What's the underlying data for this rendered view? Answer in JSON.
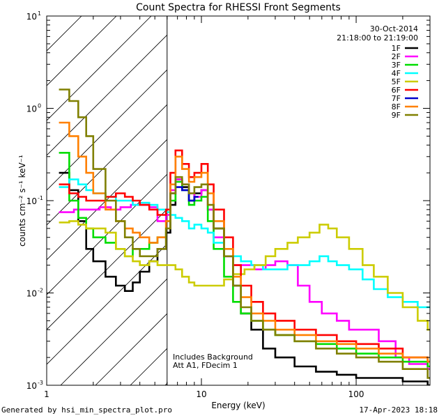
{
  "chart_data": {
    "type": "line",
    "title": "Count Spectra for RHESSI Front Segments",
    "xlabel": "Energy (keV)",
    "ylabel": "counts cm⁻² s⁻¹ keV⁻¹",
    "xscale": "log",
    "yscale": "log",
    "xlim": [
      1,
      300
    ],
    "ylim": [
      0.001,
      10
    ],
    "x_tick_labels": [
      {
        "value": 1,
        "label": "1"
      },
      {
        "value": 10,
        "label": "10"
      },
      {
        "value": 100,
        "label": "100"
      }
    ],
    "y_tick_labels": [
      {
        "value": 10,
        "label": "10",
        "exp": "1"
      },
      {
        "value": 1,
        "label": "10",
        "exp": "0"
      },
      {
        "value": 0.1,
        "label": "10",
        "exp": "-1"
      },
      {
        "value": 0.01,
        "label": "10",
        "exp": "-2"
      },
      {
        "value": 0.001,
        "label": "10",
        "exp": "-3"
      }
    ],
    "hatched_region_keV": [
      1,
      6
    ],
    "legend_position": "top-right",
    "date": "30-Oct-2014",
    "time_range": "21:18:00 to 21:19:00",
    "annotations": [
      "Includes Background",
      "Att A1, FDecim 1"
    ],
    "series": [
      {
        "name": "1F",
        "color": "#000000",
        "points": [
          [
            1.2,
            0.2
          ],
          [
            1.4,
            0.13
          ],
          [
            1.6,
            0.06
          ],
          [
            1.8,
            0.03
          ],
          [
            2.0,
            0.022
          ],
          [
            2.4,
            0.015
          ],
          [
            2.8,
            0.012
          ],
          [
            3.2,
            0.0105
          ],
          [
            3.6,
            0.013
          ],
          [
            4.0,
            0.017
          ],
          [
            4.6,
            0.022
          ],
          [
            5.2,
            0.03
          ],
          [
            5.9,
            0.045
          ],
          [
            6.3,
            0.09
          ],
          [
            6.8,
            0.17
          ],
          [
            7.5,
            0.14
          ],
          [
            8.3,
            0.1
          ],
          [
            9.0,
            0.12
          ],
          [
            10.0,
            0.13
          ],
          [
            11.0,
            0.08
          ],
          [
            12.0,
            0.05
          ],
          [
            14.0,
            0.025
          ],
          [
            16.0,
            0.012
          ],
          [
            18.0,
            0.006
          ],
          [
            21.0,
            0.004
          ],
          [
            25.0,
            0.0025
          ],
          [
            30.0,
            0.002
          ],
          [
            40.0,
            0.0016
          ],
          [
            55.0,
            0.0014
          ],
          [
            75.0,
            0.0013
          ],
          [
            100.0,
            0.0012
          ],
          [
            140.0,
            0.0012
          ],
          [
            200.0,
            0.0011
          ],
          [
            290.0,
            0.001
          ]
        ]
      },
      {
        "name": "2F",
        "color": "#ff00ff",
        "points": [
          [
            1.2,
            0.075
          ],
          [
            1.5,
            0.08
          ],
          [
            1.8,
            0.08
          ],
          [
            2.2,
            0.085
          ],
          [
            2.6,
            0.08
          ],
          [
            3.0,
            0.085
          ],
          [
            3.5,
            0.09
          ],
          [
            4.0,
            0.09
          ],
          [
            4.6,
            0.085
          ],
          [
            5.2,
            0.06
          ],
          [
            5.9,
            0.07
          ],
          [
            6.3,
            0.13
          ],
          [
            6.8,
            0.17
          ],
          [
            7.5,
            0.15
          ],
          [
            8.3,
            0.12
          ],
          [
            9.0,
            0.11
          ],
          [
            10.0,
            0.13
          ],
          [
            11.0,
            0.08
          ],
          [
            12.0,
            0.04
          ],
          [
            14.0,
            0.025
          ],
          [
            16.0,
            0.02
          ],
          [
            19.0,
            0.02
          ],
          [
            22.0,
            0.018
          ],
          [
            26.0,
            0.02
          ],
          [
            30.0,
            0.022
          ],
          [
            36.0,
            0.02
          ],
          [
            42.0,
            0.012
          ],
          [
            50.0,
            0.008
          ],
          [
            60.0,
            0.006
          ],
          [
            75.0,
            0.005
          ],
          [
            90.0,
            0.004
          ],
          [
            110.0,
            0.004
          ],
          [
            140.0,
            0.003
          ],
          [
            180.0,
            0.002
          ],
          [
            220.0,
            0.0017
          ],
          [
            290.0,
            0.0015
          ]
        ]
      },
      {
        "name": "3F",
        "color": "#00dd00",
        "points": [
          [
            1.2,
            0.33
          ],
          [
            1.4,
            0.1
          ],
          [
            1.6,
            0.065
          ],
          [
            1.8,
            0.05
          ],
          [
            2.0,
            0.04
          ],
          [
            2.4,
            0.035
          ],
          [
            2.8,
            0.03
          ],
          [
            3.2,
            0.025
          ],
          [
            3.6,
            0.03
          ],
          [
            4.0,
            0.03
          ],
          [
            4.6,
            0.035
          ],
          [
            5.2,
            0.04
          ],
          [
            5.9,
            0.06
          ],
          [
            6.3,
            0.1
          ],
          [
            6.8,
            0.16
          ],
          [
            7.5,
            0.13
          ],
          [
            8.3,
            0.09
          ],
          [
            9.0,
            0.1
          ],
          [
            10.0,
            0.11
          ],
          [
            11.0,
            0.06
          ],
          [
            12.0,
            0.03
          ],
          [
            14.0,
            0.015
          ],
          [
            16.0,
            0.008
          ],
          [
            18.0,
            0.006
          ],
          [
            21.0,
            0.005
          ],
          [
            25.0,
            0.004
          ],
          [
            30.0,
            0.0035
          ],
          [
            40.0,
            0.003
          ],
          [
            55.0,
            0.0028
          ],
          [
            75.0,
            0.0025
          ],
          [
            100.0,
            0.0022
          ],
          [
            140.0,
            0.002
          ],
          [
            200.0,
            0.0018
          ],
          [
            290.0,
            0.0016
          ]
        ]
      },
      {
        "name": "4F",
        "color": "#00ffff",
        "points": [
          [
            1.2,
            0.14
          ],
          [
            1.4,
            0.17
          ],
          [
            1.6,
            0.15
          ],
          [
            1.8,
            0.13
          ],
          [
            2.0,
            0.12
          ],
          [
            2.4,
            0.11
          ],
          [
            2.8,
            0.1
          ],
          [
            3.2,
            0.1
          ],
          [
            3.6,
            0.09
          ],
          [
            4.0,
            0.095
          ],
          [
            4.6,
            0.09
          ],
          [
            5.2,
            0.08
          ],
          [
            5.9,
            0.075
          ],
          [
            6.3,
            0.07
          ],
          [
            6.8,
            0.065
          ],
          [
            7.5,
            0.06
          ],
          [
            8.3,
            0.05
          ],
          [
            9.0,
            0.055
          ],
          [
            10.0,
            0.05
          ],
          [
            11.0,
            0.045
          ],
          [
            12.0,
            0.035
          ],
          [
            14.0,
            0.03
          ],
          [
            16.0,
            0.025
          ],
          [
            18.0,
            0.022
          ],
          [
            21.0,
            0.02
          ],
          [
            25.0,
            0.018
          ],
          [
            30.0,
            0.018
          ],
          [
            36.0,
            0.02
          ],
          [
            42.0,
            0.02
          ],
          [
            50.0,
            0.022
          ],
          [
            58.0,
            0.025
          ],
          [
            66.0,
            0.022
          ],
          [
            75.0,
            0.02
          ],
          [
            90.0,
            0.018
          ],
          [
            110.0,
            0.014
          ],
          [
            130.0,
            0.011
          ],
          [
            160.0,
            0.009
          ],
          [
            200.0,
            0.008
          ],
          [
            250.0,
            0.007
          ],
          [
            290.0,
            0.007
          ]
        ]
      },
      {
        "name": "5F",
        "color": "#cccc00",
        "points": [
          [
            1.2,
            0.058
          ],
          [
            1.4,
            0.06
          ],
          [
            1.6,
            0.055
          ],
          [
            1.8,
            0.05
          ],
          [
            2.0,
            0.05
          ],
          [
            2.4,
            0.045
          ],
          [
            2.8,
            0.03
          ],
          [
            3.2,
            0.025
          ],
          [
            3.6,
            0.022
          ],
          [
            4.0,
            0.02
          ],
          [
            4.6,
            0.022
          ],
          [
            5.2,
            0.02
          ],
          [
            5.9,
            0.02
          ],
          [
            6.3,
            0.02
          ],
          [
            6.8,
            0.018
          ],
          [
            7.5,
            0.015
          ],
          [
            8.3,
            0.013
          ],
          [
            9.0,
            0.012
          ],
          [
            10.0,
            0.012
          ],
          [
            11.0,
            0.012
          ],
          [
            12.0,
            0.012
          ],
          [
            14.0,
            0.014
          ],
          [
            16.0,
            0.016
          ],
          [
            19.0,
            0.018
          ],
          [
            22.0,
            0.02
          ],
          [
            26.0,
            0.025
          ],
          [
            30.0,
            0.03
          ],
          [
            36.0,
            0.035
          ],
          [
            42.0,
            0.04
          ],
          [
            50.0,
            0.045
          ],
          [
            58.0,
            0.055
          ],
          [
            66.0,
            0.05
          ],
          [
            75.0,
            0.04
          ],
          [
            90.0,
            0.03
          ],
          [
            110.0,
            0.02
          ],
          [
            130.0,
            0.015
          ],
          [
            160.0,
            0.01
          ],
          [
            200.0,
            0.007
          ],
          [
            250.0,
            0.005
          ],
          [
            290.0,
            0.004
          ]
        ]
      },
      {
        "name": "6F",
        "color": "#ff0000",
        "points": [
          [
            1.2,
            0.15
          ],
          [
            1.4,
            0.12
          ],
          [
            1.6,
            0.11
          ],
          [
            1.8,
            0.1
          ],
          [
            2.0,
            0.1
          ],
          [
            2.4,
            0.11
          ],
          [
            2.8,
            0.12
          ],
          [
            3.2,
            0.11
          ],
          [
            3.6,
            0.1
          ],
          [
            4.0,
            0.09
          ],
          [
            4.6,
            0.08
          ],
          [
            5.2,
            0.07
          ],
          [
            5.9,
            0.08
          ],
          [
            6.3,
            0.2
          ],
          [
            6.8,
            0.35
          ],
          [
            7.5,
            0.25
          ],
          [
            8.3,
            0.18
          ],
          [
            9.0,
            0.2
          ],
          [
            10.0,
            0.25
          ],
          [
            11.0,
            0.15
          ],
          [
            12.0,
            0.08
          ],
          [
            14.0,
            0.04
          ],
          [
            16.0,
            0.02
          ],
          [
            18.0,
            0.012
          ],
          [
            21.0,
            0.008
          ],
          [
            25.0,
            0.006
          ],
          [
            30.0,
            0.005
          ],
          [
            40.0,
            0.004
          ],
          [
            55.0,
            0.0035
          ],
          [
            75.0,
            0.003
          ],
          [
            100.0,
            0.0028
          ],
          [
            140.0,
            0.0025
          ],
          [
            200.0,
            0.002
          ],
          [
            290.0,
            0.0018
          ]
        ]
      },
      {
        "name": "7F",
        "color": "#0000cc",
        "points": [
          [
            6.3,
            0.12
          ],
          [
            6.8,
            0.14
          ],
          [
            7.5,
            0.13
          ],
          [
            8.3,
            0.1
          ],
          [
            9.0,
            0.11
          ]
        ]
      },
      {
        "name": "8F",
        "color": "#ff8000",
        "points": [
          [
            1.2,
            0.7
          ],
          [
            1.4,
            0.5
          ],
          [
            1.6,
            0.3
          ],
          [
            1.8,
            0.2
          ],
          [
            2.0,
            0.12
          ],
          [
            2.4,
            0.08
          ],
          [
            2.8,
            0.06
          ],
          [
            3.2,
            0.05
          ],
          [
            3.6,
            0.045
          ],
          [
            4.0,
            0.04
          ],
          [
            4.6,
            0.035
          ],
          [
            5.2,
            0.04
          ],
          [
            5.9,
            0.06
          ],
          [
            6.3,
            0.15
          ],
          [
            6.8,
            0.3
          ],
          [
            7.5,
            0.22
          ],
          [
            8.3,
            0.16
          ],
          [
            9.0,
            0.18
          ],
          [
            10.0,
            0.2
          ],
          [
            11.0,
            0.12
          ],
          [
            12.0,
            0.06
          ],
          [
            14.0,
            0.03
          ],
          [
            16.0,
            0.015
          ],
          [
            18.0,
            0.009
          ],
          [
            21.0,
            0.006
          ],
          [
            25.0,
            0.005
          ],
          [
            30.0,
            0.004
          ],
          [
            40.0,
            0.0035
          ],
          [
            55.0,
            0.003
          ],
          [
            75.0,
            0.0028
          ],
          [
            100.0,
            0.0025
          ],
          [
            140.0,
            0.0022
          ],
          [
            200.0,
            0.002
          ],
          [
            290.0,
            0.0018
          ]
        ]
      },
      {
        "name": "9F",
        "color": "#808000",
        "points": [
          [
            1.2,
            1.6
          ],
          [
            1.4,
            1.2
          ],
          [
            1.6,
            0.8
          ],
          [
            1.8,
            0.5
          ],
          [
            2.0,
            0.22
          ],
          [
            2.4,
            0.1
          ],
          [
            2.8,
            0.06
          ],
          [
            3.2,
            0.04
          ],
          [
            3.6,
            0.03
          ],
          [
            4.0,
            0.025
          ],
          [
            4.6,
            0.025
          ],
          [
            5.2,
            0.03
          ],
          [
            5.9,
            0.05
          ],
          [
            6.3,
            0.12
          ],
          [
            6.8,
            0.18
          ],
          [
            7.5,
            0.15
          ],
          [
            8.3,
            0.12
          ],
          [
            9.0,
            0.14
          ],
          [
            10.0,
            0.15
          ],
          [
            11.0,
            0.09
          ],
          [
            12.0,
            0.05
          ],
          [
            14.0,
            0.025
          ],
          [
            16.0,
            0.012
          ],
          [
            18.0,
            0.007
          ],
          [
            21.0,
            0.005
          ],
          [
            25.0,
            0.004
          ],
          [
            30.0,
            0.0035
          ],
          [
            40.0,
            0.003
          ],
          [
            55.0,
            0.0025
          ],
          [
            75.0,
            0.0022
          ],
          [
            100.0,
            0.002
          ],
          [
            140.0,
            0.0018
          ],
          [
            200.0,
            0.0015
          ],
          [
            290.0,
            0.0012
          ]
        ]
      }
    ]
  },
  "footer": {
    "left": "Generated by hsi_min_spectra_plot.pro",
    "right": "17-Apr-2023 18:18"
  }
}
